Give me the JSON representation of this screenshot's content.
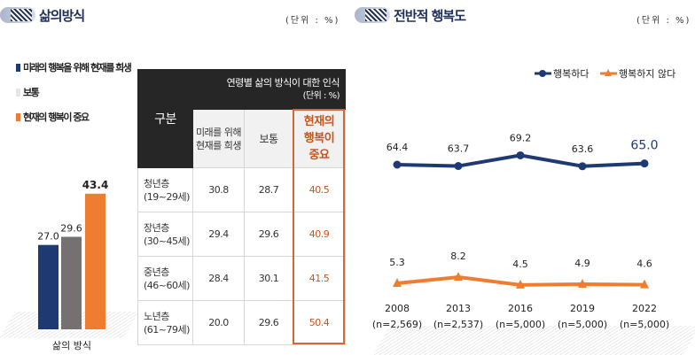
{
  "left": {
    "title": "삶의방식",
    "unit": "(단위 : %)",
    "legend": [
      {
        "label": "미래의 행복을 위해 현재를 희생",
        "color": "#1f3a73"
      },
      {
        "label": "보통",
        "color": "#e6e6e6"
      },
      {
        "label": "현재의 행복이 중요",
        "color": "#ee7d31"
      }
    ],
    "table": {
      "title": "연령별 삶의 방식이 대한 인식",
      "unit": "(단위 : %)",
      "row_header": "구분",
      "columns": [
        "미래를 위해 현재를 희생",
        "보통",
        "현재의 행복이 중요"
      ],
      "rows": [
        {
          "group": "청년층",
          "ages": "(19~29세)",
          "values": [
            "30.8",
            "28.7",
            "40.5"
          ]
        },
        {
          "group": "장년층",
          "ages": "(30~45세)",
          "values": [
            "29.4",
            "29.6",
            "40.9"
          ]
        },
        {
          "group": "중년층",
          "ages": "(46~60세)",
          "values": [
            "28.4",
            "30.1",
            "41.5"
          ]
        },
        {
          "group": "노년층",
          "ages": "(61~79세)",
          "values": [
            "20.0",
            "29.6",
            "50.4"
          ]
        }
      ]
    }
  },
  "right": {
    "title": "전반적 행복도",
    "unit": "(단위 : %)"
  },
  "chart_data": [
    {
      "type": "bar",
      "title": "삶의방식",
      "categories": [
        "삶의 방식"
      ],
      "series": [
        {
          "name": "미래의 행복을 위해 현재를 희생",
          "values": [
            27.0
          ],
          "label": "27.0",
          "color": "#1f3a73"
        },
        {
          "name": "보통",
          "values": [
            29.6
          ],
          "label": "29.6",
          "color": "#767171"
        },
        {
          "name": "현재의 행복이 중요",
          "values": [
            43.4
          ],
          "label": "43.4",
          "color": "#ee7d31"
        }
      ],
      "ylim": [
        0,
        45
      ]
    },
    {
      "type": "line",
      "title": "전반적 행복도",
      "categories": [
        "2008",
        "2013",
        "2016",
        "2019",
        "2022"
      ],
      "samples": [
        "(n=2,569)",
        "(n=2,537)",
        "(n=5,000)",
        "(n=5,000)",
        "(n=5,000)"
      ],
      "legend_position": "top-right",
      "series": [
        {
          "name": "행복하다",
          "values": [
            64.4,
            63.7,
            69.2,
            63.6,
            65.0
          ],
          "labels": [
            "64.4",
            "63.7",
            "69.2",
            "63.6",
            "65.0"
          ],
          "color": "#1f3a73",
          "marker": "circle"
        },
        {
          "name": "행복하지 않다",
          "values": [
            5.3,
            8.2,
            4.5,
            4.9,
            4.6
          ],
          "labels": [
            "5.3",
            "8.2",
            "4.5",
            "4.9",
            "4.6"
          ],
          "color": "#ee7d31",
          "marker": "triangle"
        }
      ]
    }
  ]
}
